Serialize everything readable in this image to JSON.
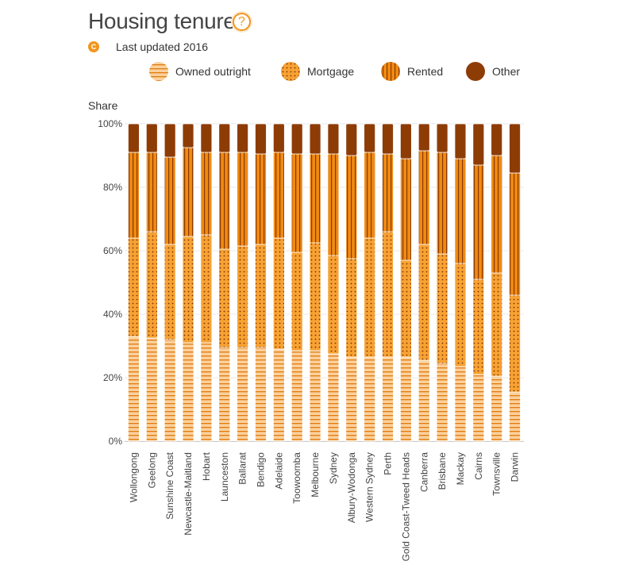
{
  "header": {
    "title": "Housing tenure",
    "help_icon": "question-circle-icon",
    "help_glyph": "?",
    "badge_icon": "c-badge-icon",
    "badge_letter": "C",
    "updated": "Last updated 2016"
  },
  "colors": {
    "owned_outright": "#fbd09b",
    "mortgage": "#f7a233",
    "rented": "#f08a11",
    "other": "#8e3c06",
    "owned_pattern": "#e07b10",
    "mortgage_pattern": "#7a3104",
    "rented_pattern": "#8a3a05"
  },
  "chart_data": {
    "type": "bar",
    "stacked": true,
    "title": "Housing tenure",
    "xlabel": "",
    "ylabel": "Share",
    "ylim": [
      0,
      100
    ],
    "yticks": [
      "0%",
      "20%",
      "40%",
      "60%",
      "80%",
      "100%"
    ],
    "grid": true,
    "legend_position": "top",
    "categories": [
      "Wollongong",
      "Geelong",
      "Sunshine Coast",
      "Newcastle-Maitland",
      "Hobart",
      "Launceston",
      "Ballarat",
      "Bendigo",
      "Adelaide",
      "Toowoomba",
      "Melbourne",
      "Sydney",
      "Albury-Wodonga",
      "Western Sydney",
      "Perth",
      "Gold Coast-Tweed Heads",
      "Canberra",
      "Brisbane",
      "Mackay",
      "Cairns",
      "Townsville",
      "Darwin"
    ],
    "series": [
      {
        "name": "Owned outright",
        "key": "owned_outright",
        "values": [
          33,
          32.5,
          32,
          31,
          31,
          29.5,
          29.5,
          29.5,
          29,
          28.5,
          28.5,
          27.5,
          26.5,
          26.5,
          26.5,
          26.5,
          25.5,
          24.5,
          23.5,
          21,
          20.5,
          15.5
        ]
      },
      {
        "name": "Mortgage",
        "key": "mortgage",
        "values": [
          31,
          33.5,
          30,
          33.5,
          34,
          31,
          32,
          32.5,
          35,
          31,
          34,
          31,
          31,
          37.5,
          39.5,
          30.5,
          36.5,
          34.5,
          32.5,
          30,
          32.5,
          30.5
        ]
      },
      {
        "name": "Rented",
        "key": "rented",
        "values": [
          27,
          25,
          27.5,
          28,
          26,
          30.5,
          29.5,
          28.5,
          27,
          31,
          28,
          32,
          32.5,
          27,
          24.5,
          32,
          29.5,
          32,
          33,
          36,
          37,
          38.5
        ]
      },
      {
        "name": "Other",
        "key": "other",
        "values": [
          9,
          9,
          10.5,
          7.5,
          9,
          9,
          9,
          9.5,
          9,
          9.5,
          9.5,
          9.5,
          10,
          9,
          9.5,
          11,
          8.5,
          9,
          11,
          13,
          10,
          15.5
        ]
      }
    ]
  }
}
